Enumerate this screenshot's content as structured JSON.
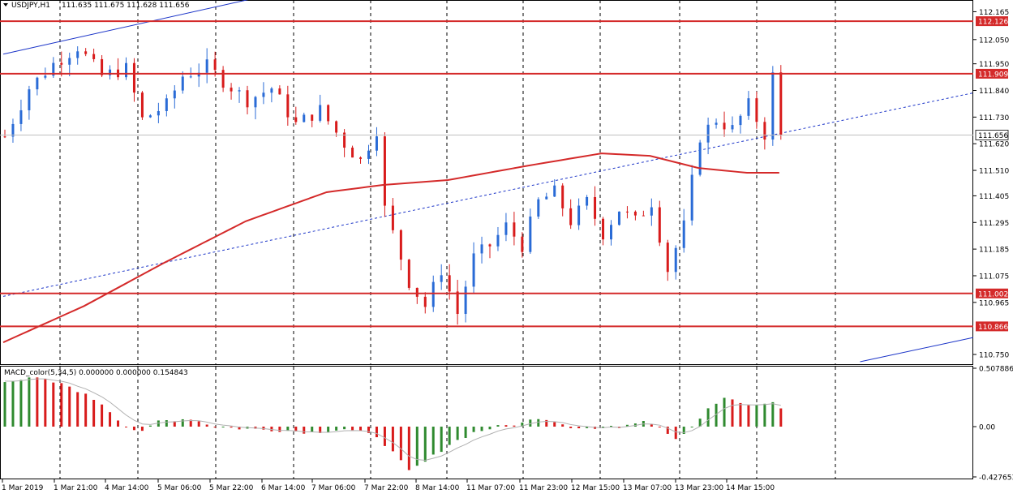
{
  "header": {
    "symbol": "USDJPY,H1",
    "ohlc": "111.635 111.675 111.628 111.656"
  },
  "macd": {
    "title": "MACD_color(5,34,5) 0.000000 0.000000 0.154843",
    "axis_labels": [
      "0.507886",
      "0.00",
      "-0.427653"
    ]
  },
  "colors": {
    "bull": "#2a6bd6",
    "bear": "#d81b1b",
    "ma": "#d42a2a",
    "level": "#d42a2a",
    "trend": "#1b34c8",
    "grid": "#000000",
    "macd_up": "#2f8a2f",
    "macd_down": "#d81b1b",
    "signal": "#b0b0b0"
  },
  "chart_data": {
    "type": "candlestick",
    "symbol": "USDJPY",
    "timeframe": "H1",
    "price_axis": {
      "ylim": [
        110.72,
        112.2
      ],
      "ticks": [
        "112.165",
        "112.050",
        "111.950",
        "111.840",
        "111.730",
        "111.620",
        "111.510",
        "111.405",
        "111.295",
        "111.185",
        "111.075",
        "110.965",
        "110.750"
      ]
    },
    "current_price": "111.656",
    "levels": [
      "112.126",
      "111.909",
      "111.002",
      "110.866"
    ],
    "time_labels": [
      "1 Mar 2019",
      "1 Mar 21:00",
      "4 Mar 14:00",
      "5 Mar 06:00",
      "5 Mar 22:00",
      "6 Mar 14:00",
      "7 Mar 06:00",
      "7 Mar 22:00",
      "8 Mar 14:00",
      "11 Mar 07:00",
      "11 Mar 23:00",
      "12 Mar 15:00",
      "13 Mar 07:00",
      "13 Mar 23:00",
      "14 Mar 15:00"
    ],
    "price_path": [
      [
        0,
        111.65
      ],
      [
        3,
        111.85
      ],
      [
        6,
        111.95
      ],
      [
        9,
        112.02
      ],
      [
        12,
        111.9
      ],
      [
        15,
        111.93
      ],
      [
        17,
        111.72
      ],
      [
        20,
        111.78
      ],
      [
        22,
        111.9
      ],
      [
        25,
        111.94
      ],
      [
        27,
        111.88
      ],
      [
        30,
        111.8
      ],
      [
        33,
        111.85
      ],
      [
        36,
        111.7
      ],
      [
        39,
        111.76
      ],
      [
        42,
        111.62
      ],
      [
        44,
        111.55
      ],
      [
        46,
        111.68
      ],
      [
        47,
        111.35
      ],
      [
        50,
        111.05
      ],
      [
        52,
        110.95
      ],
      [
        54,
        111.1
      ],
      [
        56,
        110.92
      ],
      [
        58,
        111.15
      ],
      [
        60,
        111.2
      ],
      [
        62,
        111.28
      ],
      [
        64,
        111.2
      ],
      [
        66,
        111.38
      ],
      [
        68,
        111.42
      ],
      [
        70,
        111.3
      ],
      [
        72,
        111.38
      ],
      [
        74,
        111.25
      ],
      [
        76,
        111.35
      ],
      [
        78,
        111.3
      ],
      [
        80,
        111.38
      ],
      [
        82,
        111.1
      ],
      [
        84,
        111.28
      ],
      [
        86,
        111.65
      ],
      [
        88,
        111.72
      ],
      [
        90,
        111.68
      ],
      [
        92,
        111.78
      ],
      [
        94,
        111.66
      ],
      [
        95,
        111.9
      ],
      [
        96,
        111.656
      ]
    ],
    "ma_path": [
      [
        0,
        110.8
      ],
      [
        10,
        110.95
      ],
      [
        20,
        111.13
      ],
      [
        30,
        111.3
      ],
      [
        40,
        111.42
      ],
      [
        47,
        111.45
      ],
      [
        55,
        111.47
      ],
      [
        65,
        111.53
      ],
      [
        74,
        111.58
      ],
      [
        80,
        111.57
      ],
      [
        86,
        111.52
      ],
      [
        92,
        111.5
      ],
      [
        96,
        111.5
      ]
    ],
    "trend_lines": [
      {
        "style": "solid",
        "from": [
          0,
          111.99
        ],
        "to": [
          31,
          112.22
        ]
      },
      {
        "style": "solid",
        "from": [
          106,
          110.72
        ],
        "to": [
          120,
          110.82
        ]
      },
      {
        "style": "dashed",
        "from": [
          0,
          110.99
        ],
        "to": [
          120,
          111.83
        ]
      }
    ],
    "macd_ylim": [
      -0.427653,
      0.507886
    ],
    "macd_path": [
      [
        0,
        0.4
      ],
      [
        4,
        0.42
      ],
      [
        8,
        0.35
      ],
      [
        12,
        0.2
      ],
      [
        15,
        0.0
      ],
      [
        17,
        -0.05
      ],
      [
        19,
        0.05
      ],
      [
        23,
        0.07
      ],
      [
        26,
        0.0
      ],
      [
        30,
        -0.02
      ],
      [
        34,
        -0.03
      ],
      [
        38,
        -0.05
      ],
      [
        42,
        -0.02
      ],
      [
        46,
        -0.08
      ],
      [
        48,
        -0.22
      ],
      [
        50,
        -0.38
      ],
      [
        52,
        -0.3
      ],
      [
        55,
        -0.15
      ],
      [
        58,
        -0.05
      ],
      [
        61,
        0.0
      ],
      [
        64,
        0.03
      ],
      [
        66,
        0.08
      ],
      [
        68,
        0.05
      ],
      [
        70,
        0.0
      ],
      [
        73,
        -0.02
      ],
      [
        76,
        0.0
      ],
      [
        79,
        0.06
      ],
      [
        81,
        0.0
      ],
      [
        83,
        -0.1
      ],
      [
        85,
        0.0
      ],
      [
        87,
        0.15
      ],
      [
        89,
        0.25
      ],
      [
        91,
        0.2
      ],
      [
        93,
        0.18
      ],
      [
        95,
        0.22
      ],
      [
        96,
        0.15
      ]
    ]
  }
}
